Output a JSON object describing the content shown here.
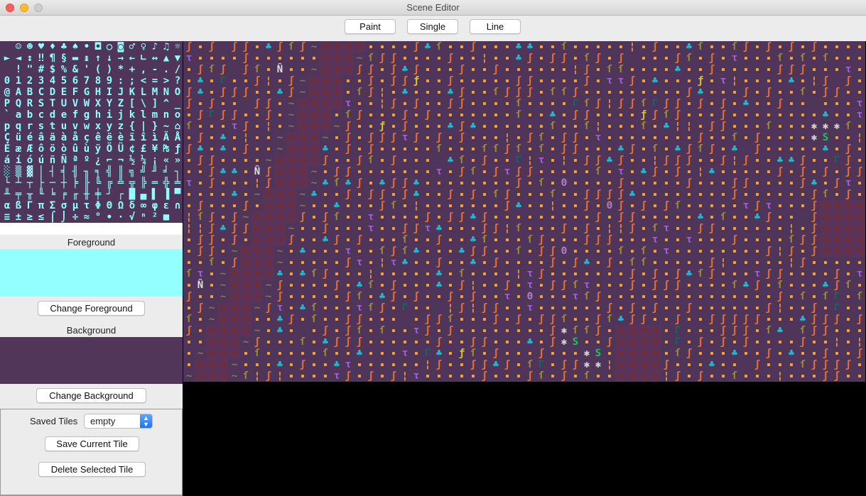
{
  "window": {
    "title": "Scene Editor"
  },
  "toolbar": {
    "paint": "Paint",
    "single": "Single",
    "line": "Line"
  },
  "palette": {
    "rows": [
      " ☺☻♥♦♣♠•◘○◙♂♀♪♫☼",
      "►◄↕‼¶§▬↨↑↓→←∟↔▲▼",
      " !\"#$%&'()*+,-./",
      "0123456789:;<=>?",
      "@ABCDEFGHIJKLMNO",
      "PQRSTUVWXYZ[\\]^_",
      "`abcdefghijklmno",
      "pqrstuvwxyz{|}~⌂",
      "ÇüéâäàåçêëèïîìÄÅ",
      "ÉæÆôöòûùÿÖÜ¢£¥₧ƒ",
      "áíóúñÑªº¿⌐¬½¼¡«»",
      "░▒▓│┤╡╢╖╕╣║╗╝╜╛┐",
      "└┴┬├─┼╞╟╚╔╩╦╠═╬╧",
      "╨╤╥╙╘╒╓╫╪┘┌█▄▌▐▀",
      "αßΓπΣσµτΦΘΩδ∞φε∩",
      "≡±≥≤⌠⌡÷≈°∙·√ⁿ²■ "
    ],
    "color": "#90ffff"
  },
  "foreground": {
    "label": "Foreground",
    "color": "#94ffff",
    "button": "Change Foreground"
  },
  "background": {
    "label": "Background",
    "color": "#52365a",
    "button": "Change Background"
  },
  "saved_tiles": {
    "label": "Saved Tiles",
    "selected": "empty",
    "save_button": "Save Current Tile",
    "delete_button": "Delete Selected Tile"
  },
  "map": {
    "background": "#4f3559",
    "tiles": {
      "dot": {
        "glyph": "·",
        "color": "#f7a030"
      },
      "leaf": {
        "glyph": "ʃ",
        "color": "#e8702a"
      },
      "sapling": {
        "glyph": "ſ",
        "color": "#a08a30"
      },
      "water": {
        "glyph": "≈",
        "color": "#7a2a2a",
        "bg": "#5b3356"
      },
      "shore": {
        "glyph": "~",
        "color": "#8a7c50"
      },
      "tree": {
        "glyph": "♣",
        "color": "#18c0d0"
      },
      "tau": {
        "glyph": "τ",
        "color": "#a060d0"
      },
      "star": {
        "glyph": "✱",
        "color": "#d8d0d0"
      },
      "snake": {
        "glyph": "S",
        "color": "#20c060"
      },
      "n_tilde": {
        "glyph": "Ñ",
        "color": "#e0e0e0"
      },
      "f_hook": {
        "glyph": "ƒ",
        "color": "#e0c030"
      },
      "theta": {
        "glyph": "Θ",
        "color": "#b080c0"
      },
      "bar": {
        "glyph": "¦",
        "color": "#f7a030"
      },
      "gamma": {
        "glyph": "Γ",
        "color": "#106868"
      }
    }
  }
}
